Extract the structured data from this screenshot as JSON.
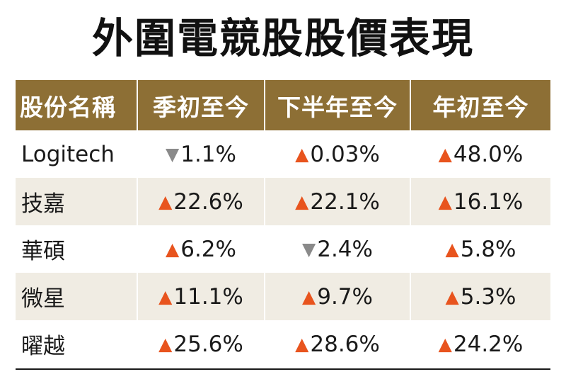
{
  "title": "外圍電競股股價表現",
  "colors": {
    "header_bg": "#8d6f35",
    "up": "#e8541e",
    "down": "#8a8a8a",
    "shade_row": "#f0ece3"
  },
  "chart_data": {
    "type": "table",
    "title": "外圍電競股股價表現",
    "columns": [
      "股份名稱",
      "季初至今",
      "下半年至今",
      "年初至今"
    ],
    "rows": [
      {
        "name": "Logitech",
        "cells": [
          {
            "dir": "down",
            "symbol": "▼",
            "value": "1.1%"
          },
          {
            "dir": "up",
            "symbol": "▲",
            "value": "0.03%"
          },
          {
            "dir": "up",
            "symbol": "▲",
            "value": "48.0%"
          }
        ]
      },
      {
        "name": "技嘉",
        "cells": [
          {
            "dir": "up",
            "symbol": "▲",
            "value": "22.6%"
          },
          {
            "dir": "up",
            "symbol": "▲",
            "value": "22.1%"
          },
          {
            "dir": "up",
            "symbol": "▲",
            "value": "16.1%"
          }
        ]
      },
      {
        "name": "華碩",
        "cells": [
          {
            "dir": "up",
            "symbol": "▲",
            "value": "6.2%"
          },
          {
            "dir": "down",
            "symbol": "▼",
            "value": "2.4%"
          },
          {
            "dir": "up",
            "symbol": "▲",
            "value": "5.8%"
          }
        ]
      },
      {
        "name": "微星",
        "cells": [
          {
            "dir": "up",
            "symbol": "▲",
            "value": "11.1%"
          },
          {
            "dir": "up",
            "symbol": "▲",
            "value": "9.7%"
          },
          {
            "dir": "up",
            "symbol": "▲",
            "value": "5.3%"
          }
        ]
      },
      {
        "name": "曜越",
        "cells": [
          {
            "dir": "up",
            "symbol": "▲",
            "value": "25.6%"
          },
          {
            "dir": "up",
            "symbol": "▲",
            "value": "28.6%"
          },
          {
            "dir": "up",
            "symbol": "▲",
            "value": "24.2%"
          }
        ]
      }
    ]
  }
}
